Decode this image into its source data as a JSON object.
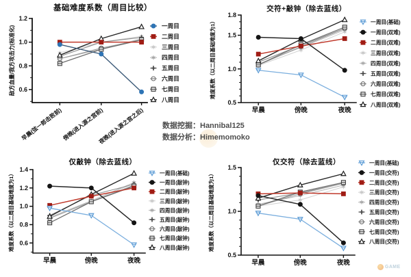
{
  "credits": {
    "mining_label": "数据挖掘：",
    "mining_value": "Hannibal125",
    "analysis_label": "数据分析：",
    "analysis_value": "Himemomoko"
  },
  "watermark": {
    "text": "GAME"
  },
  "chart_data": [
    {
      "type": "line",
      "title": "基础难度系数（周目比较）",
      "ylabel": "敌方血量/我方攻击力(标准化)",
      "categories": [
        "早晨(弦一郎击败前)",
        "傍晚(进入源之宫前)",
        "夜晚(进入源之宫之后)"
      ],
      "ylim": [
        0.5,
        1.2
      ],
      "yticks": [
        0.6,
        0.8,
        1.0,
        1.2
      ],
      "grid": false,
      "legend_position": "right",
      "series": [
        {
          "name": "一周目",
          "marker": "circle",
          "color": "#2e74b5",
          "line": "#3c5a78",
          "lw": 1.4,
          "values": [
            0.98,
            0.9,
            0.58
          ]
        },
        {
          "name": "二周目",
          "marker": "square",
          "color": "#a01d15",
          "line": "#c0392b",
          "lw": 1.5,
          "values": [
            1.0,
            1.0,
            1.0
          ]
        },
        {
          "name": "三周目",
          "marker": "star",
          "color": "#c8c8c8",
          "line": "#d0d0d0",
          "lw": 1.0,
          "values": [
            0.91,
            1.0,
            1.05
          ]
        },
        {
          "name": "四周目",
          "marker": "star",
          "color": "#a8a8a8",
          "line": "#b3b3b3",
          "lw": 1.0,
          "values": [
            0.86,
            0.94,
            1.03
          ]
        },
        {
          "name": "五周目",
          "marker": "plus",
          "color": "#3f3f3f",
          "line": "#8c8c8c",
          "lw": 1.1,
          "values": [
            0.88,
            1.0,
            1.04
          ]
        },
        {
          "name": "六周目",
          "marker": "circle-line",
          "color": "#6a6a6a",
          "line": "#9a9a9a",
          "lw": 1.1,
          "values": [
            0.86,
            0.95,
            1.02
          ]
        },
        {
          "name": "七周目",
          "marker": "square-line",
          "color": "#3f3f3f",
          "line": "#6e6e6e",
          "lw": 1.3,
          "values": [
            0.82,
            0.94,
            1.02
          ]
        },
        {
          "name": "八周目",
          "marker": "triangle",
          "color": "#1a1a1a",
          "line": "#262626",
          "lw": 1.4,
          "values": [
            0.89,
            1.03,
            1.13
          ]
        }
      ]
    },
    {
      "type": "line",
      "title": "交符+敲钟（除去蓝线）",
      "ylabel": "难度系数（以二周目基础难度为1）",
      "categories": [
        "早晨",
        "傍晚",
        "夜晚"
      ],
      "ylim": [
        0.5,
        1.8
      ],
      "yticks": [
        0.5,
        1.0,
        1.5,
        1.8
      ],
      "grid": false,
      "legend_position": "right",
      "series": [
        {
          "name": "一周目(基础)",
          "marker": "tri-down-line",
          "color": "#5b9bd5",
          "line": "#7aaede",
          "lw": 1.3,
          "values": [
            0.98,
            0.91,
            0.58
          ]
        },
        {
          "name": "一周目(双难)",
          "marker": "circle",
          "color": "#141414",
          "line": "#262626",
          "lw": 1.5,
          "values": [
            1.47,
            1.45,
            0.98
          ]
        },
        {
          "name": "二周目(双难)",
          "marker": "square",
          "color": "#a01d15",
          "line": "#c0392b",
          "lw": 1.5,
          "values": [
            1.22,
            1.34,
            1.45
          ]
        },
        {
          "name": "三周目(双难)",
          "marker": "star",
          "color": "#c9c9c9",
          "line": "#d0d0d0",
          "lw": 1.0,
          "values": [
            1.05,
            1.28,
            1.55
          ]
        },
        {
          "name": "四周目(双难)",
          "marker": "star",
          "color": "#ababab",
          "line": "#b5b5b5",
          "lw": 1.0,
          "values": [
            1.07,
            1.32,
            1.58
          ]
        },
        {
          "name": "五周目(双难)",
          "marker": "plus",
          "color": "#3f3f3f",
          "line": "#8f8f8f",
          "lw": 1.1,
          "values": [
            1.1,
            1.35,
            1.6
          ]
        },
        {
          "name": "六周目(双难)",
          "marker": "circle-line",
          "color": "#6a6a6a",
          "line": "#9c9c9c",
          "lw": 1.1,
          "values": [
            1.06,
            1.33,
            1.6
          ]
        },
        {
          "name": "七周目(双难)",
          "marker": "square-line",
          "color": "#3f3f3f",
          "line": "#707070",
          "lw": 1.3,
          "values": [
            1.06,
            1.36,
            1.62
          ]
        },
        {
          "name": "八周目(双难)",
          "marker": "triangle",
          "color": "#1a1a1a",
          "line": "#262626",
          "lw": 1.4,
          "values": [
            1.12,
            1.44,
            1.73
          ]
        }
      ]
    },
    {
      "type": "line",
      "title": "仅敲钟（除去蓝线）",
      "ylabel": "难度系数（以二周目基础难度为1）",
      "categories": [
        "早晨",
        "傍晚",
        "夜晚"
      ],
      "ylim": [
        0.5,
        1.4
      ],
      "yticks": [
        0.6,
        0.8,
        1.0,
        1.2,
        1.4
      ],
      "grid": false,
      "legend_position": "right",
      "series": [
        {
          "name": "一周目(基础)",
          "marker": "tri-down-line",
          "color": "#5b9bd5",
          "line": "#7aaede",
          "lw": 1.3,
          "values": [
            0.98,
            0.9,
            0.58
          ]
        },
        {
          "name": "一周目(敲钟)",
          "marker": "circle",
          "color": "#141414",
          "line": "#262626",
          "lw": 1.5,
          "values": [
            1.22,
            1.2,
            0.82
          ]
        },
        {
          "name": "二周目(敲钟)",
          "marker": "square",
          "color": "#a01d15",
          "line": "#c0392b",
          "lw": 1.5,
          "values": [
            1.01,
            1.11,
            1.2
          ]
        },
        {
          "name": "三周目(敲钟)",
          "marker": "star",
          "color": "#c9c9c9",
          "line": "#d0d0d0",
          "lw": 1.0,
          "values": [
            0.87,
            1.05,
            1.25
          ]
        },
        {
          "name": "四周目(敲钟)",
          "marker": "star",
          "color": "#ababab",
          "line": "#b5b5b5",
          "lw": 1.0,
          "values": [
            0.88,
            1.06,
            1.26
          ]
        },
        {
          "name": "五周目(敲钟)",
          "marker": "plus",
          "color": "#3f3f3f",
          "line": "#8f8f8f",
          "lw": 1.1,
          "values": [
            0.9,
            1.12,
            1.24
          ]
        },
        {
          "name": "六周目(敲钟)",
          "marker": "circle-line",
          "color": "#6a6a6a",
          "line": "#9c9c9c",
          "lw": 1.1,
          "values": [
            0.87,
            1.05,
            1.23
          ]
        },
        {
          "name": "七周目(敲钟)",
          "marker": "square-line",
          "color": "#3f3f3f",
          "line": "#707070",
          "lw": 1.3,
          "values": [
            0.82,
            1.05,
            1.22
          ]
        },
        {
          "name": "八周目(敲钟)",
          "marker": "triangle",
          "color": "#1a1a1a",
          "line": "#262626",
          "lw": 1.4,
          "values": [
            0.89,
            1.13,
            1.36
          ]
        }
      ]
    },
    {
      "type": "line",
      "title": "仅交符（除去蓝线）",
      "ylabel": "难度系数（以二周目基础难度为1）",
      "categories": [
        "早晨",
        "傍晚",
        "夜晚"
      ],
      "ylim": [
        0.5,
        1.5
      ],
      "yticks": [
        0.5,
        1.0,
        1.5
      ],
      "grid": false,
      "legend_position": "right",
      "series": [
        {
          "name": "一周目(基础)",
          "marker": "tri-down-line",
          "color": "#5b9bd5",
          "line": "#7aaede",
          "lw": 1.3,
          "values": [
            0.98,
            0.91,
            0.58
          ]
        },
        {
          "name": "一周目(交符)",
          "marker": "circle",
          "color": "#141414",
          "line": "#262626",
          "lw": 1.5,
          "values": [
            1.18,
            1.08,
            0.64
          ]
        },
        {
          "name": "二周目(交符)",
          "marker": "square",
          "color": "#a01d15",
          "line": "#c0392b",
          "lw": 1.5,
          "values": [
            1.2,
            1.21,
            1.2
          ]
        },
        {
          "name": "三周目(交符)",
          "marker": "star",
          "color": "#c9c9c9",
          "line": "#d0d0d0",
          "lw": 1.0,
          "values": [
            1.06,
            1.13,
            1.28
          ]
        },
        {
          "name": "四周目(交符)",
          "marker": "star",
          "color": "#ababab",
          "line": "#b5b5b5",
          "lw": 1.0,
          "values": [
            1.08,
            1.18,
            1.3
          ]
        },
        {
          "name": "五周目(交符)",
          "marker": "plus",
          "color": "#3f3f3f",
          "line": "#8f8f8f",
          "lw": 1.1,
          "values": [
            1.13,
            1.21,
            1.32
          ]
        },
        {
          "name": "六周目(交符)",
          "marker": "circle-line",
          "color": "#6a6a6a",
          "line": "#9c9c9c",
          "lw": 1.1,
          "values": [
            1.06,
            1.2,
            1.32
          ]
        },
        {
          "name": "七周目(交符)",
          "marker": "square-line",
          "color": "#3f3f3f",
          "line": "#707070",
          "lw": 1.3,
          "values": [
            1.06,
            1.22,
            1.33
          ]
        },
        {
          "name": "八周目(交符)",
          "marker": "triangle",
          "color": "#1a1a1a",
          "line": "#262626",
          "lw": 1.4,
          "values": [
            1.15,
            1.3,
            1.43
          ]
        }
      ]
    }
  ]
}
